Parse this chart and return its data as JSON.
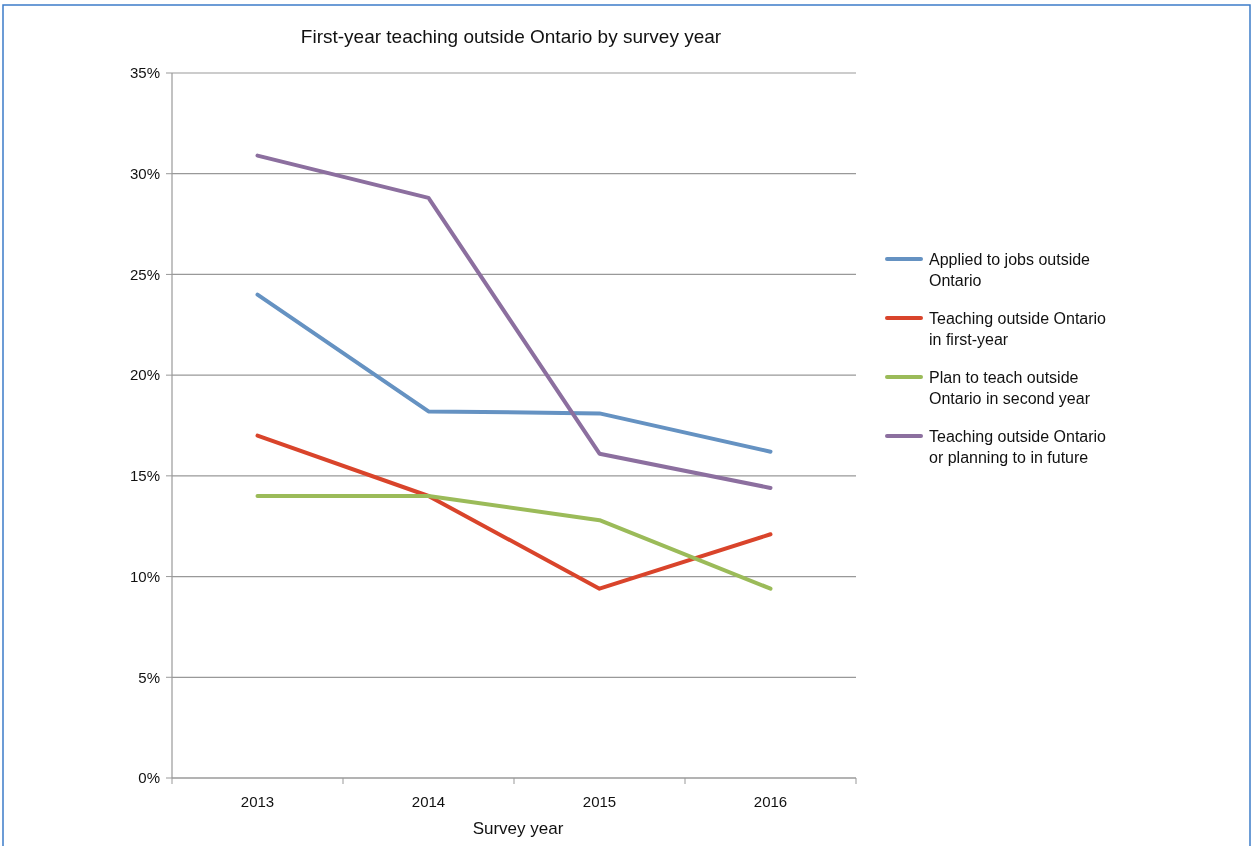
{
  "chart_data": {
    "type": "line",
    "title": "First-year teaching outside Ontario by survey year",
    "xlabel": "Survey year",
    "categories": [
      "2013",
      "2014",
      "2015",
      "2016"
    ],
    "series": [
      {
        "name": "Applied to jobs outside Ontario",
        "color": "#6592c2",
        "values": [
          24.0,
          18.2,
          18.1,
          16.2
        ]
      },
      {
        "name": "Teaching outside Ontario in first-year",
        "color": "#d9442b",
        "values": [
          17.0,
          14.0,
          9.4,
          12.1
        ]
      },
      {
        "name": "Plan to teach outside Ontario in second year",
        "color": "#9bbb59",
        "values": [
          14.0,
          14.0,
          12.8,
          9.4
        ]
      },
      {
        "name": "Teaching outside Ontario or planning to in future",
        "color": "#8c6f9f",
        "values": [
          30.9,
          28.8,
          16.1,
          14.4
        ]
      }
    ],
    "ylim": [
      0,
      35
    ],
    "yticks": [
      {
        "value": 0,
        "label": "0%"
      },
      {
        "value": 5,
        "label": "5%"
      },
      {
        "value": 10,
        "label": "10%"
      },
      {
        "value": 15,
        "label": "15%"
      },
      {
        "value": 20,
        "label": "20%"
      },
      {
        "value": 25,
        "label": "25%"
      },
      {
        "value": 30,
        "label": "30%"
      },
      {
        "value": 35,
        "label": "35%"
      }
    ],
    "grid": "y",
    "legend": "right",
    "marker": "none",
    "line_style": "solid"
  }
}
